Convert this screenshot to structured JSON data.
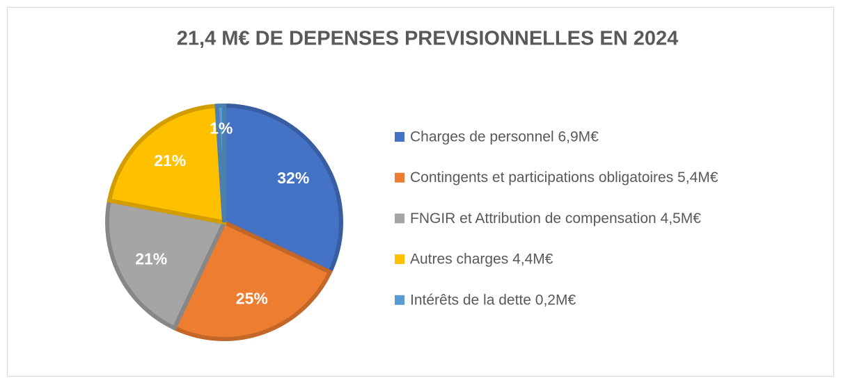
{
  "chart_data": {
    "type": "pie",
    "title": "21,4 M€ DE DEPENSES PREVISIONNELLES EN 2024",
    "categories": [
      "Charges de personnel 6,9M€",
      "Contingents et participations obligatoires 5,4M€",
      "FNGIR et Attribution de compensation 4,5M€",
      "Autres charges 4,4M€",
      "Intérêts de la dette 0,2M€"
    ],
    "values": [
      32,
      25,
      21,
      21,
      1
    ],
    "value_labels": [
      "32%",
      "25%",
      "21%",
      "21%",
      "1%"
    ],
    "colors": [
      "#4472c4",
      "#ed7d31",
      "#a5a5a5",
      "#ffc000",
      "#5b9bd5"
    ],
    "legend": "right"
  }
}
